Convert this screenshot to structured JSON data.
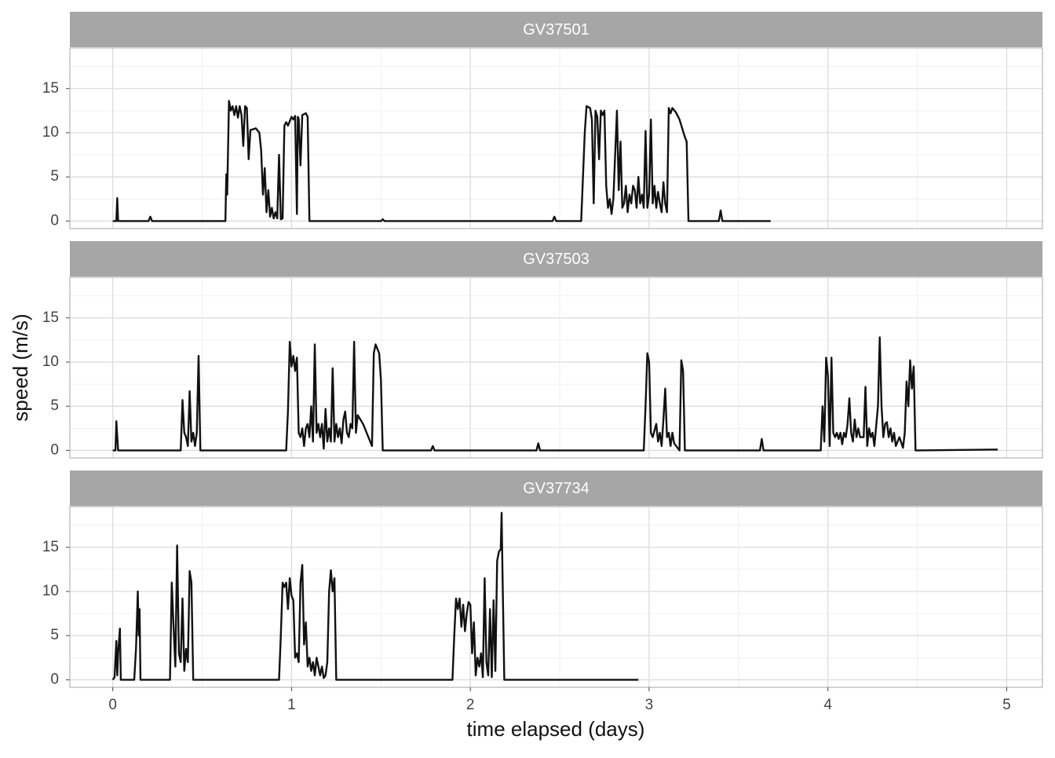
{
  "chart_data": {
    "type": "line",
    "facet": true,
    "x_label": "time elapsed (days)",
    "y_label": "speed (m/s)",
    "xlim": [
      -0.24,
      5.2
    ],
    "xticks": [
      0,
      1,
      2,
      3,
      4,
      5
    ],
    "ylim": [
      -0.85,
      19.6
    ],
    "yticks": [
      0,
      5,
      10,
      15
    ],
    "grid": true,
    "series": [
      {
        "name": "GV37501",
        "color": "#111111",
        "x": [
          0,
          0.02,
          0.025,
          0.03,
          0.2,
          0.21,
          0.22,
          0.63,
          0.635,
          0.64,
          0.65,
          0.66,
          0.67,
          0.68,
          0.69,
          0.7,
          0.71,
          0.72,
          0.73,
          0.74,
          0.75,
          0.76,
          0.77,
          0.8,
          0.82,
          0.83,
          0.84,
          0.85,
          0.86,
          0.87,
          0.88,
          0.89,
          0.9,
          0.91,
          0.92,
          0.93,
          0.94,
          0.95,
          0.96,
          0.97,
          0.98,
          1.0,
          1.01,
          1.02,
          1.03,
          1.035,
          1.04,
          1.05,
          1.06,
          1.08,
          1.09,
          1.1,
          1.5,
          1.51,
          1.52,
          2.46,
          2.47,
          2.48,
          2.62,
          2.64,
          2.65,
          2.67,
          2.68,
          2.69,
          2.7,
          2.71,
          2.72,
          2.73,
          2.74,
          2.75,
          2.76,
          2.77,
          2.78,
          2.79,
          2.8,
          2.81,
          2.82,
          2.83,
          2.84,
          2.85,
          2.86,
          2.87,
          2.88,
          2.89,
          2.9,
          2.91,
          2.92,
          2.93,
          2.94,
          2.95,
          2.96,
          2.97,
          2.98,
          2.99,
          3.0,
          3.01,
          3.02,
          3.03,
          3.04,
          3.05,
          3.06,
          3.07,
          3.08,
          3.09,
          3.1,
          3.11,
          3.12,
          3.13,
          3.15,
          3.17,
          3.2,
          3.21,
          3.22,
          3.39,
          3.4,
          3.41,
          3.68
        ],
        "values": [
          0,
          0,
          2.6,
          0,
          0,
          0.5,
          0,
          0,
          5.3,
          3,
          13.6,
          12.5,
          13,
          12,
          13,
          11.7,
          13,
          12,
          8.5,
          13,
          12.8,
          7,
          10.3,
          10.5,
          10,
          8,
          3,
          6,
          1,
          3.5,
          0.5,
          1.5,
          0.3,
          1,
          0.3,
          7.5,
          0.2,
          0.3,
          10.8,
          11.2,
          10.8,
          11.8,
          11.5,
          11.9,
          0.8,
          11.8,
          11.6,
          6.3,
          12,
          12.2,
          11.8,
          0,
          0,
          0.2,
          0,
          0,
          0.5,
          0,
          0,
          10,
          13,
          12.8,
          11.5,
          2,
          12.5,
          11.8,
          7,
          12.5,
          12,
          12.5,
          4,
          1.5,
          2.5,
          0.8,
          2.5,
          7.5,
          12.5,
          3.5,
          9,
          1.5,
          2,
          4,
          1,
          3,
          2,
          4,
          3.5,
          1.5,
          5,
          2,
          3,
          1.5,
          10.2,
          1.5,
          3,
          11.5,
          2,
          4,
          1.5,
          3.3,
          2,
          1,
          4.4,
          2,
          1,
          12.8,
          12.2,
          12.8,
          12.3,
          11.5,
          9.5,
          9,
          0,
          0,
          1.2,
          0,
          0
        ]
      },
      {
        "name": "GV37503",
        "color": "#111111",
        "x": [
          0,
          0.015,
          0.02,
          0.03,
          0.38,
          0.39,
          0.4,
          0.41,
          0.42,
          0.43,
          0.44,
          0.45,
          0.46,
          0.47,
          0.48,
          0.49,
          0.97,
          0.98,
          0.99,
          1.0,
          1.01,
          1.02,
          1.03,
          1.04,
          1.05,
          1.06,
          1.07,
          1.08,
          1.09,
          1.1,
          1.11,
          1.12,
          1.13,
          1.14,
          1.15,
          1.16,
          1.17,
          1.18,
          1.19,
          1.2,
          1.21,
          1.22,
          1.23,
          1.24,
          1.25,
          1.26,
          1.27,
          1.28,
          1.29,
          1.3,
          1.31,
          1.32,
          1.33,
          1.34,
          1.35,
          1.36,
          1.37,
          1.4,
          1.43,
          1.45,
          1.46,
          1.47,
          1.48,
          1.49,
          1.5,
          1.51,
          1.78,
          1.79,
          1.8,
          2.37,
          2.38,
          2.39,
          2.97,
          2.98,
          2.99,
          3.0,
          3.01,
          3.02,
          3.04,
          3.05,
          3.06,
          3.07,
          3.08,
          3.09,
          3.1,
          3.11,
          3.12,
          3.13,
          3.14,
          3.17,
          3.18,
          3.19,
          3.2,
          3.62,
          3.63,
          3.64,
          3.96,
          3.97,
          3.98,
          3.99,
          4.0,
          4.01,
          4.02,
          4.03,
          4.04,
          4.05,
          4.06,
          4.07,
          4.08,
          4.09,
          4.1,
          4.11,
          4.12,
          4.13,
          4.14,
          4.15,
          4.16,
          4.17,
          4.18,
          4.2,
          4.21,
          4.22,
          4.23,
          4.24,
          4.25,
          4.26,
          4.28,
          4.29,
          4.3,
          4.31,
          4.32,
          4.33,
          4.34,
          4.35,
          4.36,
          4.37,
          4.38,
          4.4,
          4.42,
          4.43,
          4.44,
          4.45,
          4.46,
          4.47,
          4.48,
          4.49,
          4.95
        ],
        "values": [
          0,
          0,
          3.3,
          0,
          0,
          5.7,
          2,
          1.5,
          0.5,
          6.7,
          1,
          2,
          0.5,
          2,
          10.7,
          0,
          0,
          4.5,
          12.3,
          9.5,
          10.7,
          9,
          10.5,
          2,
          1.5,
          2.5,
          0.5,
          2.5,
          3,
          1.5,
          5,
          1,
          12,
          2,
          3,
          1.5,
          3,
          0.2,
          4.7,
          1,
          2.5,
          1,
          9.3,
          1,
          3,
          1.5,
          2.5,
          0.8,
          3.5,
          4.4,
          2,
          1.5,
          3,
          2.5,
          12.3,
          2,
          4,
          3,
          1.5,
          0.5,
          11,
          12,
          11.5,
          11,
          8,
          0,
          0,
          0.5,
          0,
          0,
          0.8,
          0,
          0,
          5,
          11,
          10,
          2,
          1.5,
          3,
          1,
          2,
          0.5,
          3.5,
          7,
          1.5,
          2,
          0.5,
          2,
          0.8,
          0,
          10.2,
          9,
          0,
          0,
          1.3,
          0,
          0,
          5,
          1,
          10.5,
          8.5,
          0.5,
          10.5,
          2,
          1.5,
          2,
          1.3,
          2,
          0.7,
          2,
          1.5,
          3,
          5.9,
          2,
          1,
          3.5,
          1.5,
          2.5,
          1.5,
          1.5,
          7.2,
          0.5,
          2.5,
          1.5,
          2,
          0.5,
          5,
          12.8,
          5,
          1.5,
          3,
          3.2,
          1.5,
          2.5,
          1,
          2,
          0.5,
          1.5,
          0.3,
          2,
          7.8,
          5,
          10.2,
          7,
          9.5,
          0,
          0.1
        ]
      },
      {
        "name": "GV37734",
        "color": "#111111",
        "x": [
          0,
          0.01,
          0.02,
          0.025,
          0.03,
          0.04,
          0.045,
          0.12,
          0.13,
          0.14,
          0.145,
          0.15,
          0.155,
          0.32,
          0.33,
          0.34,
          0.35,
          0.36,
          0.37,
          0.38,
          0.39,
          0.4,
          0.41,
          0.42,
          0.43,
          0.44,
          0.45,
          0.93,
          0.94,
          0.95,
          0.96,
          0.97,
          0.98,
          0.99,
          1.0,
          1.01,
          1.02,
          1.03,
          1.04,
          1.05,
          1.06,
          1.07,
          1.08,
          1.09,
          1.1,
          1.11,
          1.12,
          1.13,
          1.14,
          1.15,
          1.16,
          1.17,
          1.18,
          1.19,
          1.2,
          1.21,
          1.22,
          1.23,
          1.24,
          1.25,
          1.9,
          1.91,
          1.92,
          1.93,
          1.94,
          1.95,
          1.96,
          1.97,
          1.98,
          1.99,
          2.0,
          2.01,
          2.02,
          2.03,
          2.04,
          2.05,
          2.06,
          2.07,
          2.08,
          2.09,
          2.1,
          2.11,
          2.12,
          2.13,
          2.14,
          2.15,
          2.16,
          2.17,
          2.175,
          2.18,
          2.19,
          2.94
        ],
        "values": [
          0,
          0.3,
          4.4,
          0.5,
          3,
          5.8,
          0,
          0,
          3.5,
          10,
          5,
          8,
          0,
          0,
          11,
          6,
          1.5,
          15.2,
          3,
          2,
          9.2,
          1,
          3.5,
          2,
          12.3,
          11,
          0,
          0,
          5,
          11,
          10.5,
          11,
          8,
          11.5,
          9.5,
          9,
          2.5,
          3,
          2,
          11,
          13,
          4,
          6.5,
          1.5,
          2.5,
          1,
          2,
          0.5,
          2.5,
          1.5,
          0.5,
          1.5,
          0.2,
          0.5,
          2,
          10,
          12.4,
          10,
          11.5,
          0,
          0,
          5,
          9.2,
          8,
          9.2,
          6,
          8.5,
          5.5,
          7.5,
          8.8,
          8.5,
          3,
          6.5,
          0.5,
          2.5,
          1.5,
          3,
          0.3,
          11.5,
          2,
          0.5,
          8,
          0.3,
          9,
          1,
          13.5,
          14.5,
          14.8,
          18.9,
          12,
          0,
          0
        ]
      }
    ]
  }
}
